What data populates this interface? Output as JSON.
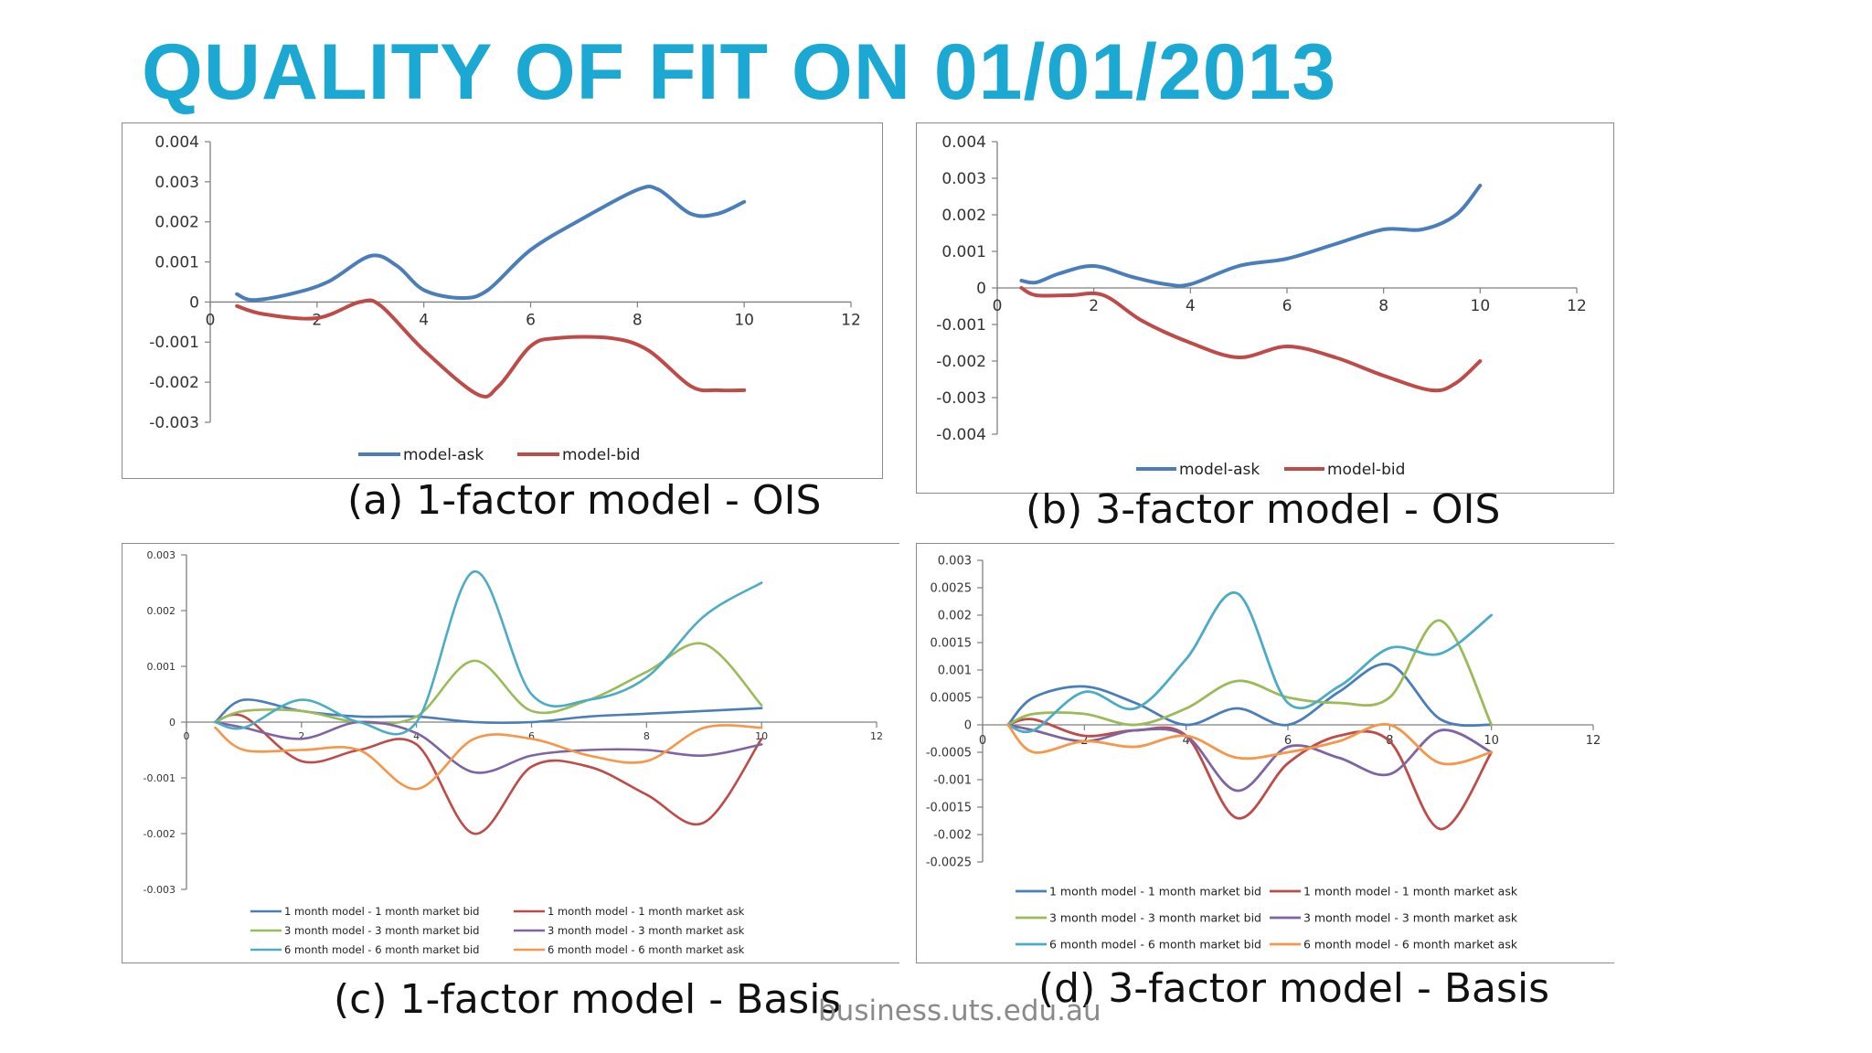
{
  "title": "QUALITY OF FIT ON 01/01/2013",
  "footer": "business.uts.edu.au",
  "colors": {
    "title": "#1BA9D3",
    "ask": "#4A7EBB",
    "bid": "#BE4B48"
  },
  "panels": [
    {
      "caption": "(a) 1-factor model - OIS",
      "chart_data": {
        "type": "line",
        "xlim": [
          0,
          12
        ],
        "ylim": [
          -0.003,
          0.004
        ],
        "xticks": [
          "0",
          "2",
          "4",
          "6",
          "8",
          "10",
          "12"
        ],
        "yticks": [
          "0.004",
          "0.003",
          "0.002",
          "0.001",
          "0",
          "-0.001",
          "-0.002",
          "-0.003"
        ],
        "legend_position": "bottom",
        "series": [
          {
            "name": "model-ask",
            "color": "#4A7EBB",
            "points": [
              [
                0.5,
                0.0002
              ],
              [
                0.8,
                5e-05
              ],
              [
                1.5,
                0.0002
              ],
              [
                2.2,
                0.0005
              ],
              [
                3,
                0.00115
              ],
              [
                3.5,
                0.0009
              ],
              [
                4,
                0.0003
              ],
              [
                4.7,
                0.0001
              ],
              [
                5.2,
                0.0003
              ],
              [
                6,
                0.0013
              ],
              [
                7,
                0.0021
              ],
              [
                8,
                0.0028
              ],
              [
                8.4,
                0.0028
              ],
              [
                9,
                0.0022
              ],
              [
                9.5,
                0.0022
              ],
              [
                10,
                0.0025
              ]
            ]
          },
          {
            "name": "model-bid",
            "color": "#BE4B48",
            "points": [
              [
                0.5,
                -0.0001
              ],
              [
                1,
                -0.0003
              ],
              [
                2,
                -0.0004
              ],
              [
                2.8,
                0
              ],
              [
                3.2,
                -0.0001
              ],
              [
                4,
                -0.0012
              ],
              [
                5,
                -0.0023
              ],
              [
                5.4,
                -0.0021
              ],
              [
                6,
                -0.0011
              ],
              [
                6.5,
                -0.0009
              ],
              [
                7.5,
                -0.0009
              ],
              [
                8.2,
                -0.0012
              ],
              [
                9,
                -0.0021
              ],
              [
                9.5,
                -0.0022
              ],
              [
                10,
                -0.0022
              ]
            ]
          }
        ]
      }
    },
    {
      "caption": "(b) 3-factor model - OIS",
      "chart_data": {
        "type": "line",
        "xlim": [
          0,
          12
        ],
        "ylim": [
          -0.004,
          0.004
        ],
        "xticks": [
          "0",
          "2",
          "4",
          "6",
          "8",
          "10",
          "12"
        ],
        "yticks": [
          "0.004",
          "0.003",
          "0.002",
          "0.001",
          "0",
          "-0.001",
          "-0.002",
          "-0.003",
          "-0.004"
        ],
        "legend_position": "bottom",
        "series": [
          {
            "name": "model-ask",
            "color": "#4A7EBB",
            "points": [
              [
                0.5,
                0.0002
              ],
              [
                0.8,
                0.00015
              ],
              [
                1.3,
                0.0004
              ],
              [
                2,
                0.0006
              ],
              [
                2.8,
                0.0003
              ],
              [
                3.5,
                0.0001
              ],
              [
                4,
                0.0001
              ],
              [
                5,
                0.0006
              ],
              [
                6,
                0.0008
              ],
              [
                7,
                0.0012
              ],
              [
                8,
                0.0016
              ],
              [
                8.8,
                0.0016
              ],
              [
                9.5,
                0.002
              ],
              [
                10,
                0.0028
              ]
            ]
          },
          {
            "name": "model-bid",
            "color": "#BE4B48",
            "points": [
              [
                0.5,
                0
              ],
              [
                0.8,
                -0.0002
              ],
              [
                1.5,
                -0.0002
              ],
              [
                2.2,
                -0.0002
              ],
              [
                3,
                -0.0009
              ],
              [
                4,
                -0.0015
              ],
              [
                5,
                -0.0019
              ],
              [
                6,
                -0.0016
              ],
              [
                7,
                -0.0019
              ],
              [
                8,
                -0.0024
              ],
              [
                9,
                -0.0028
              ],
              [
                9.5,
                -0.0026
              ],
              [
                10,
                -0.002
              ]
            ]
          }
        ]
      }
    },
    {
      "caption": "(c) 1-factor model - Basis",
      "chart_data": {
        "type": "line",
        "xlim": [
          0,
          12
        ],
        "ylim": [
          -0.003,
          0.003
        ],
        "xticks": [
          "0",
          "2",
          "4",
          "6",
          "8",
          "10",
          "12"
        ],
        "yticks": [
          "0.003",
          "0.002",
          "0.001",
          "0",
          "-0.001",
          "-0.002",
          "-0.003"
        ],
        "legend_position": "bottom",
        "series": [
          {
            "name": "1 month model - 1 month market bid",
            "color": "#4A7EBB",
            "points": [
              [
                0.5,
                0
              ],
              [
                1,
                0.0004
              ],
              [
                2,
                0.0002
              ],
              [
                3,
                0.0001
              ],
              [
                4,
                0.0001
              ],
              [
                5,
                0
              ],
              [
                6,
                0
              ],
              [
                7,
                0.0001
              ],
              [
                8,
                0.00015
              ],
              [
                9,
                0.0002
              ],
              [
                10,
                0.00025
              ]
            ]
          },
          {
            "name": "1 month model - 1 month market ask",
            "color": "#BE4B48",
            "points": [
              [
                0.5,
                0
              ],
              [
                1,
                0.0001
              ],
              [
                2,
                -0.0007
              ],
              [
                3,
                -0.0005
              ],
              [
                4,
                -0.0004
              ],
              [
                5,
                -0.002
              ],
              [
                6,
                -0.0008
              ],
              [
                7,
                -0.0008
              ],
              [
                8,
                -0.0013
              ],
              [
                9,
                -0.0018
              ],
              [
                10,
                -0.0003
              ]
            ]
          },
          {
            "name": "3 month model - 3 month market bid",
            "color": "#9BBB59",
            "points": [
              [
                0.5,
                0
              ],
              [
                1,
                0.0002
              ],
              [
                2,
                0.0002
              ],
              [
                3,
                0
              ],
              [
                4,
                0.0001
              ],
              [
                5,
                0.0011
              ],
              [
                6,
                0.0002
              ],
              [
                7,
                0.0004
              ],
              [
                8,
                0.0009
              ],
              [
                9,
                0.0014
              ],
              [
                10,
                0.0003
              ]
            ]
          },
          {
            "name": "3 month model - 3 month market ask",
            "color": "#7F64A2",
            "points": [
              [
                0.5,
                0
              ],
              [
                1,
                -0.0001
              ],
              [
                2,
                -0.0003
              ],
              [
                3,
                0
              ],
              [
                4,
                -0.0002
              ],
              [
                5,
                -0.0009
              ],
              [
                6,
                -0.0006
              ],
              [
                7,
                -0.0005
              ],
              [
                8,
                -0.0005
              ],
              [
                9,
                -0.0006
              ],
              [
                10,
                -0.0004
              ]
            ]
          },
          {
            "name": "6 month model - 6 month market bid",
            "color": "#4BACC6",
            "points": [
              [
                0.5,
                0
              ],
              [
                1,
                -0.0001
              ],
              [
                2,
                0.0004
              ],
              [
                3,
                0
              ],
              [
                4,
                0
              ],
              [
                5,
                0.0027
              ],
              [
                6,
                0.0005
              ],
              [
                7,
                0.0004
              ],
              [
                8,
                0.0008
              ],
              [
                9,
                0.0019
              ],
              [
                10,
                0.0025
              ]
            ]
          },
          {
            "name": "6 month model - 6 month market ask",
            "color": "#F79646",
            "points": [
              [
                0.5,
                -0.0001
              ],
              [
                1,
                -0.0005
              ],
              [
                2,
                -0.0005
              ],
              [
                3,
                -0.0005
              ],
              [
                4,
                -0.0012
              ],
              [
                5,
                -0.0003
              ],
              [
                6,
                -0.0003
              ],
              [
                7,
                -0.0006
              ],
              [
                8,
                -0.0007
              ],
              [
                9,
                -0.0001
              ],
              [
                10,
                -0.0001
              ]
            ]
          }
        ]
      }
    },
    {
      "caption": "(d) 3-factor model - Basis",
      "chart_data": {
        "type": "line",
        "xlim": [
          0,
          12
        ],
        "ylim": [
          -0.0025,
          0.003
        ],
        "xticks": [
          "0",
          "2",
          "4",
          "6",
          "8",
          "10",
          "12"
        ],
        "yticks": [
          "0.003",
          "0.0025",
          "0.002",
          "0.0015",
          "0.001",
          "0.0005",
          "0",
          "-0.0005",
          "-0.001",
          "-0.0015",
          "-0.002",
          "-0.0025"
        ],
        "legend_position": "bottom",
        "series": [
          {
            "name": "1 month model - 1 month market bid",
            "color": "#4A7EBB",
            "points": [
              [
                0.5,
                0
              ],
              [
                1,
                0.0005
              ],
              [
                2,
                0.0007
              ],
              [
                3,
                0.0004
              ],
              [
                4,
                0
              ],
              [
                5,
                0.0003
              ],
              [
                6,
                0
              ],
              [
                7,
                0.0006
              ],
              [
                8,
                0.0011
              ],
              [
                9,
                0.0001
              ],
              [
                10,
                0
              ]
            ]
          },
          {
            "name": "1 month model - 1 month market ask",
            "color": "#BE4B48",
            "points": [
              [
                0.5,
                0
              ],
              [
                1,
                0.0001
              ],
              [
                2,
                -0.0002
              ],
              [
                3,
                -0.0001
              ],
              [
                4,
                -0.0002
              ],
              [
                5,
                -0.0017
              ],
              [
                6,
                -0.0007
              ],
              [
                7,
                -0.0002
              ],
              [
                8,
                -0.0003
              ],
              [
                9,
                -0.0019
              ],
              [
                10,
                -0.0005
              ]
            ]
          },
          {
            "name": "3 month model - 3 month market bid",
            "color": "#9BBB59",
            "points": [
              [
                0.5,
                0
              ],
              [
                1,
                0.0002
              ],
              [
                2,
                0.0002
              ],
              [
                3,
                0
              ],
              [
                4,
                0.0003
              ],
              [
                5,
                0.0008
              ],
              [
                6,
                0.0005
              ],
              [
                7,
                0.0004
              ],
              [
                8,
                0.0005
              ],
              [
                9,
                0.0019
              ],
              [
                10,
                0
              ]
            ]
          },
          {
            "name": "3 month model - 3 month market ask",
            "color": "#7F64A2",
            "points": [
              [
                0.5,
                0
              ],
              [
                1,
                -0.0001
              ],
              [
                2,
                -0.0003
              ],
              [
                3,
                -0.0001
              ],
              [
                4,
                -0.0002
              ],
              [
                5,
                -0.0012
              ],
              [
                6,
                -0.0004
              ],
              [
                7,
                -0.0006
              ],
              [
                8,
                -0.0009
              ],
              [
                9,
                -0.0001
              ],
              [
                10,
                -0.0005
              ]
            ]
          },
          {
            "name": "6 month model - 6 month market bid",
            "color": "#4BACC6",
            "points": [
              [
                0.5,
                0
              ],
              [
                1,
                -0.0001
              ],
              [
                2,
                0.0006
              ],
              [
                3,
                0.0003
              ],
              [
                4,
                0.0012
              ],
              [
                5,
                0.0024
              ],
              [
                6,
                0.0004
              ],
              [
                7,
                0.0007
              ],
              [
                8,
                0.0014
              ],
              [
                9,
                0.0013
              ],
              [
                10,
                0.002
              ]
            ]
          },
          {
            "name": "6 month model - 6 month market ask",
            "color": "#F79646",
            "points": [
              [
                0.5,
                0
              ],
              [
                1,
                -0.0005
              ],
              [
                2,
                -0.0003
              ],
              [
                3,
                -0.0004
              ],
              [
                4,
                -0.0002
              ],
              [
                5,
                -0.0006
              ],
              [
                6,
                -0.0005
              ],
              [
                7,
                -0.0003
              ],
              [
                8,
                0
              ],
              [
                9,
                -0.0007
              ],
              [
                10,
                -0.0005
              ]
            ]
          }
        ]
      }
    }
  ]
}
